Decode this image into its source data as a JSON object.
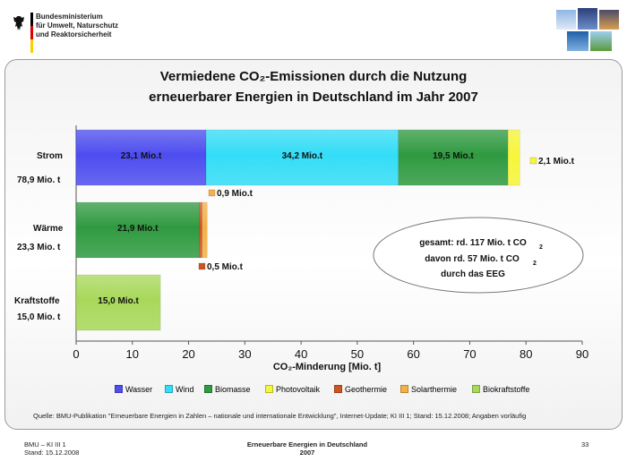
{
  "header": {
    "ministry_lines": [
      "Bundesministerium",
      "für Umwelt, Naturschutz",
      "und Reaktorsicherheit"
    ]
  },
  "colors": {
    "Wasser": "#4d4df0",
    "Wind": "#33ddf7",
    "Biomasse": "#2f9a40",
    "Photovoltaik": "#f6f63a",
    "Geothermie": "#cc5522",
    "Solarthermie": "#f5b048",
    "Biokraftstoffe": "#a8d85a"
  },
  "chart_data": {
    "type": "bar",
    "orientation": "horizontal",
    "stacked": true,
    "title_line1": "Vermiedene CO₂-Emissionen durch die Nutzung",
    "title_line2": "erneuerbarer Energien in Deutschland im Jahr 2007",
    "xlabel": "CO₂-Minderung  [Mio. t]",
    "xlim": [
      0,
      90
    ],
    "xticks": [
      0,
      10,
      20,
      30,
      40,
      50,
      60,
      70,
      80,
      90
    ],
    "categories": [
      {
        "name": "Strom",
        "total_label": "78,9 Mio. t"
      },
      {
        "name": "Wärme",
        "total_label": "23,3 Mio. t"
      },
      {
        "name": "Kraftstoffe",
        "total_label": "15,0 Mio. t"
      }
    ],
    "series": [
      {
        "name": "Wasser",
        "values": [
          23.1,
          0,
          0
        ],
        "labels": [
          "23,1 Mio.t",
          "",
          ""
        ]
      },
      {
        "name": "Wind",
        "values": [
          34.2,
          0,
          0
        ],
        "labels": [
          "34,2 Mio.t",
          "",
          ""
        ]
      },
      {
        "name": "Biomasse",
        "values": [
          19.5,
          21.9,
          0
        ],
        "labels": [
          "19,5 Mio.t",
          "21,9 Mio.t",
          ""
        ]
      },
      {
        "name": "Photovoltaik",
        "values": [
          2.1,
          0,
          0
        ],
        "labels": [
          "2,1 Mio.t",
          "",
          ""
        ]
      },
      {
        "name": "Geothermie",
        "values": [
          0,
          0.5,
          0
        ],
        "labels": [
          "",
          "0,5 Mio.t",
          ""
        ]
      },
      {
        "name": "Solarthermie",
        "values": [
          0,
          0.9,
          0
        ],
        "labels": [
          "",
          "0,9 Mio.t",
          ""
        ]
      },
      {
        "name": "Biokraftstoffe",
        "values": [
          0,
          0,
          15.0
        ],
        "labels": [
          "",
          "",
          "15,0 Mio.t"
        ]
      }
    ],
    "annotation": {
      "line1": "gesamt: rd. 117 Mio. t CO",
      "line1_sub": "2",
      "line2": "davon rd. 57 Mio. t  CO",
      "line2_sub": "2",
      "line3": "durch das EEG"
    },
    "grid": false,
    "legend_position": "bottom"
  },
  "source": "Quelle: BMU-Publikation \"Erneuerbare Energien in Zahlen – nationale und internationale Entwicklung\", Internet-Update; KI III 1; Stand: 15.12.2008; Angaben vorläufig",
  "footer": {
    "left_line1": "BMU – KI III 1",
    "left_line2": "Stand: 15.12.2008",
    "center_line1": "Erneuerbare Energien in Deutschland",
    "center_line2": "2007",
    "page_number": "33"
  }
}
